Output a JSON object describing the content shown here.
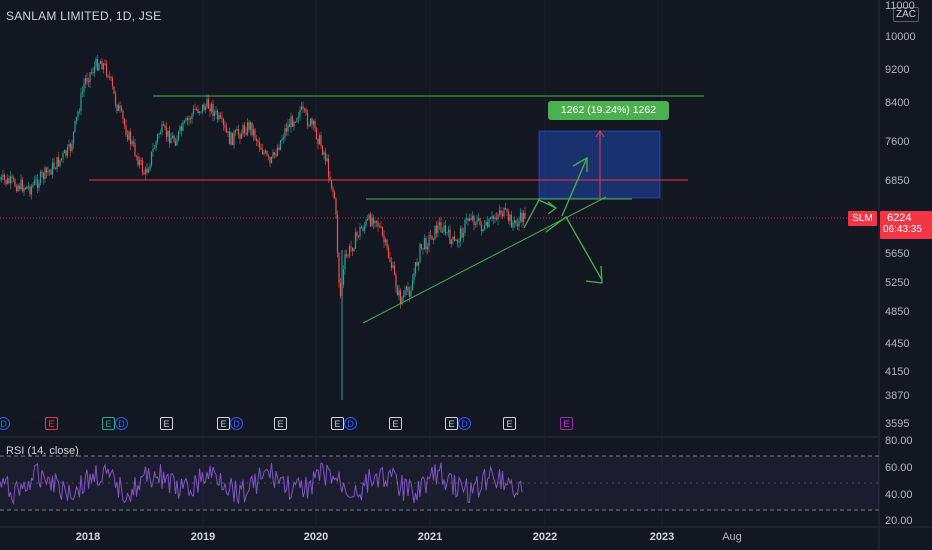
{
  "chart": {
    "title": "SANLAM LIMITED, 1D, JSE",
    "currency": "ZAC",
    "price_ticks": [
      "11000",
      "10000",
      "9200",
      "8400",
      "7600",
      "6850",
      "5650",
      "5250",
      "4850",
      "4450",
      "4150",
      "3870",
      "3595"
    ],
    "last_price": {
      "symbol": "SLM",
      "price": "6224",
      "countdown": "06:43:35"
    },
    "measure_label": "1262 (19.24%) 1262",
    "time_ticks": [
      {
        "label": "2018",
        "bold": true
      },
      {
        "label": "2019",
        "bold": true
      },
      {
        "label": "2020",
        "bold": true
      },
      {
        "label": "2021",
        "bold": true
      },
      {
        "label": "2022",
        "bold": true
      },
      {
        "label": "2023",
        "bold": true
      },
      {
        "label": "Aug",
        "bold": false
      }
    ],
    "events": [
      {
        "type": "D",
        "style": "d"
      },
      {
        "type": "E",
        "style": "er"
      },
      {
        "type": "E",
        "style": "eg"
      },
      {
        "type": "D",
        "style": "d"
      },
      {
        "type": "E",
        "style": "e"
      },
      {
        "type": "E",
        "style": "e"
      },
      {
        "type": "D",
        "style": "d"
      },
      {
        "type": "E",
        "style": "e"
      },
      {
        "type": "E",
        "style": "e"
      },
      {
        "type": "D",
        "style": "d"
      },
      {
        "type": "E",
        "style": "e"
      },
      {
        "type": "E",
        "style": "e"
      },
      {
        "type": "D",
        "style": "d"
      },
      {
        "type": "E",
        "style": "e"
      },
      {
        "type": "E",
        "style": "ep"
      }
    ],
    "colors": {
      "background": "#131722",
      "up": "#26a69a",
      "down": "#ef5350",
      "resistance": "#f23645",
      "trend": "#4caf50",
      "rsi": "#7e57c2",
      "target_zone": "#2962ff"
    }
  },
  "rsi": {
    "title": "RSI (14, close)",
    "ticks": [
      "80.00",
      "60.00",
      "40.00",
      "20.00"
    ]
  }
}
